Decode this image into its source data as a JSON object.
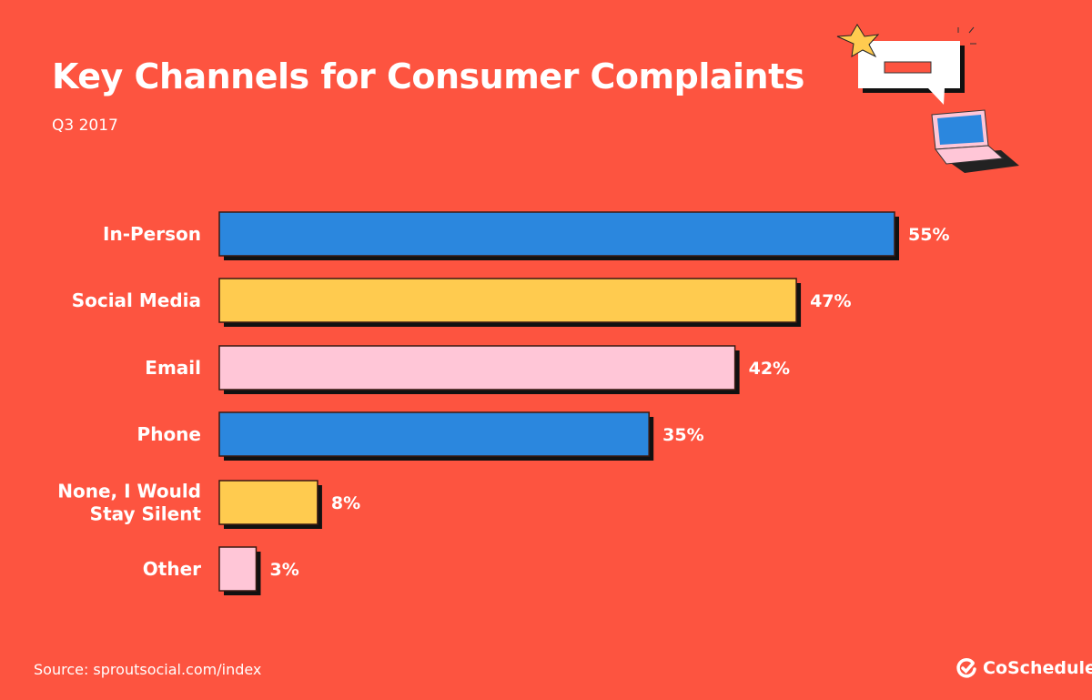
{
  "chart_data": {
    "type": "bar",
    "orientation": "horizontal",
    "title": "Key Channels for Consumer Complaints",
    "subtitle": "Q3 2017",
    "categories": [
      [
        "In-Person"
      ],
      [
        "Social Media"
      ],
      [
        "Email"
      ],
      [
        "Phone"
      ],
      [
        "None, I Would",
        "Stay Silent"
      ],
      [
        "Other"
      ]
    ],
    "values": [
      55,
      47,
      42,
      35,
      8,
      3
    ],
    "value_labels": [
      "55%",
      "47%",
      "42%",
      "35%",
      "8%",
      "3%"
    ],
    "colors": [
      "#2b87de",
      "#ffcb4f",
      "#ffc6d7",
      "#2b87de",
      "#ffcb4f",
      "#ffc6d7"
    ],
    "xlim": [
      0,
      55
    ],
    "grid": false
  },
  "footer": {
    "source": "Source: sproutsocial.com/index",
    "brand": "CoSchedule"
  },
  "colors": {
    "background": "#fd5440"
  }
}
